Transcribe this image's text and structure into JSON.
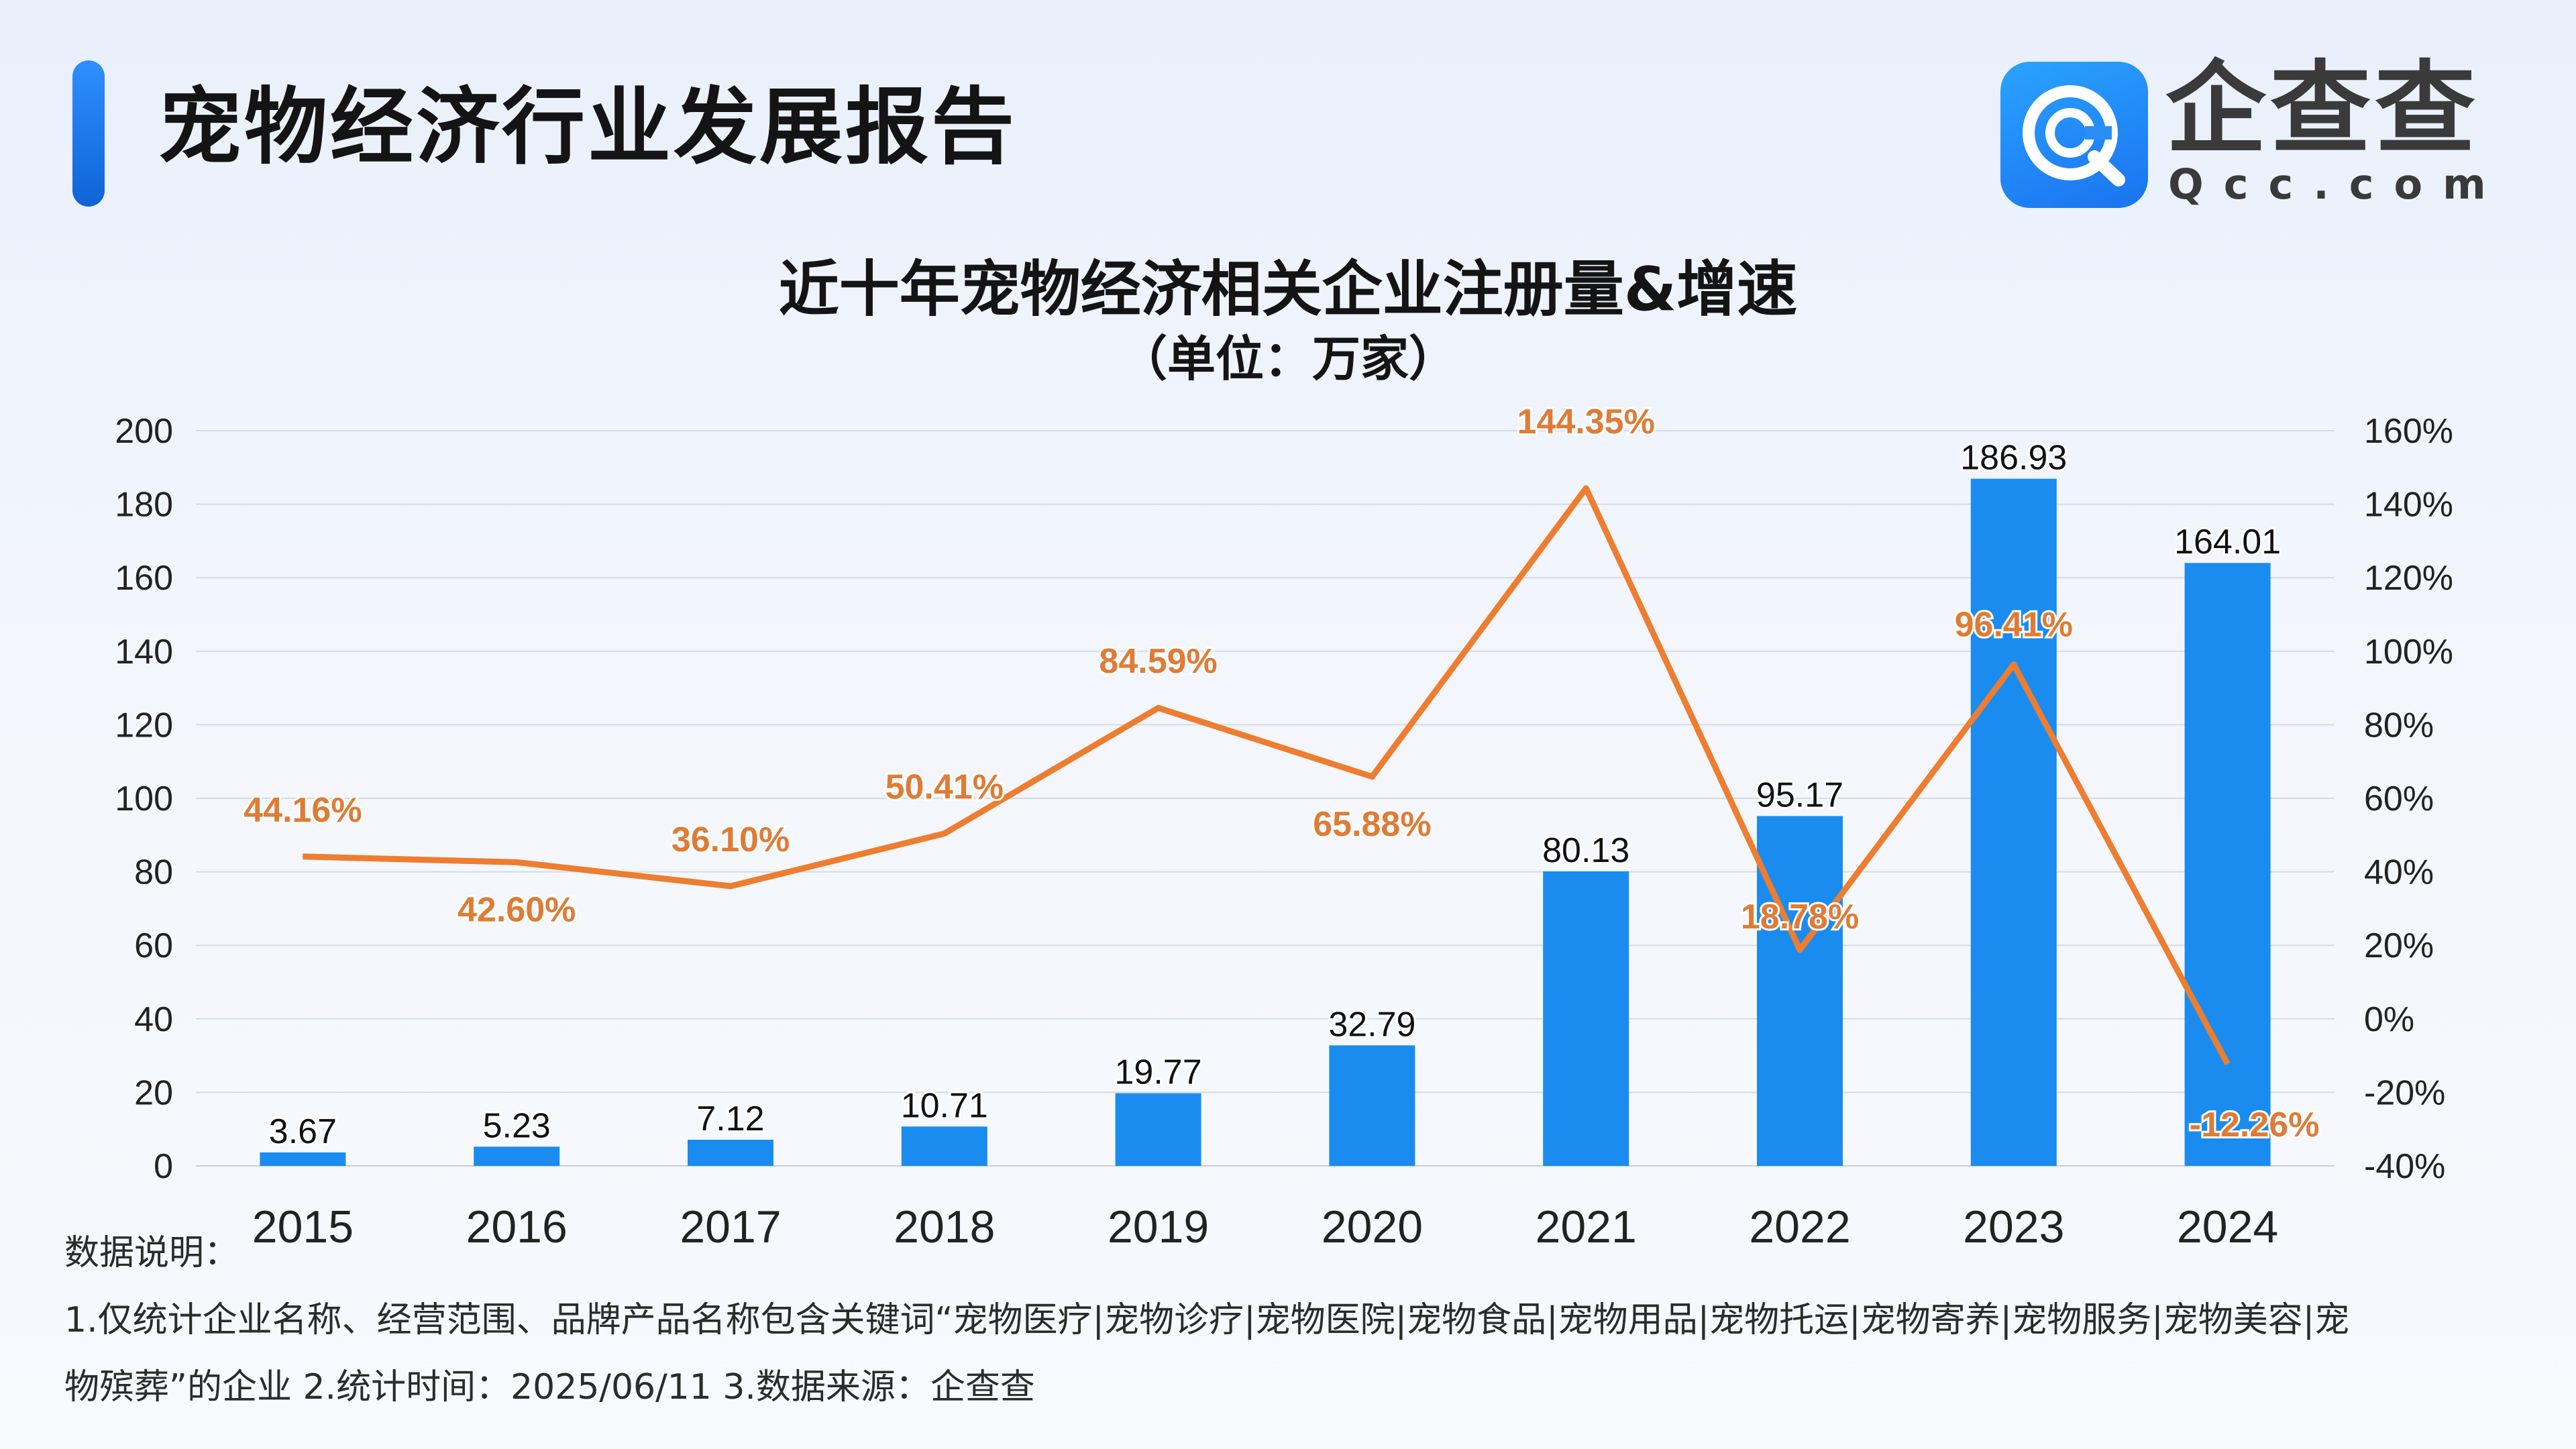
{
  "header": {
    "title": "宠物经济行业发展报告",
    "logo_cn": "企查查",
    "logo_en": "Qcc.com"
  },
  "colors": {
    "bar": "#1a8cf0",
    "line": "#ee7d2f",
    "line_label": "#e07b35",
    "grid": "#d6dbe3",
    "axis_text": "#222222"
  },
  "chart_data": {
    "type": "bar",
    "title": "近十年宠物经济相关企业注册量&增速",
    "subtitle": "（单位：万家）",
    "categories": [
      "2015",
      "2016",
      "2017",
      "2018",
      "2019",
      "2020",
      "2021",
      "2022",
      "2023",
      "2024"
    ],
    "series": [
      {
        "type": "bar",
        "values": [
          3.67,
          5.23,
          7.12,
          10.71,
          19.77,
          32.79,
          80.13,
          95.17,
          186.93,
          164.01
        ],
        "labels": [
          "3.67",
          "5.23",
          "7.12",
          "10.71",
          "19.77",
          "32.79",
          "80.13",
          "95.17",
          "186.93",
          "164.01"
        ],
        "axis": "left"
      },
      {
        "type": "line",
        "values": [
          44.16,
          42.6,
          36.1,
          50.41,
          84.59,
          65.88,
          144.35,
          18.78,
          96.41,
          -12.26
        ],
        "labels": [
          "44.16%",
          "42.60%",
          "36.10%",
          "50.41%",
          "84.59%",
          "65.88%",
          "144.35%",
          "18.78%",
          "96.41%",
          "-12.26%"
        ],
        "axis": "right"
      }
    ],
    "ylim": [
      0,
      200
    ],
    "y_ticks": [
      "0",
      "20",
      "40",
      "60",
      "80",
      "100",
      "120",
      "140",
      "160",
      "180",
      "200"
    ],
    "y2lim": [
      -40,
      160
    ],
    "y2_ticks": [
      "-40%",
      "-20%",
      "0%",
      "20%",
      "40%",
      "60%",
      "80%",
      "100%",
      "120%",
      "140%",
      "160%"
    ],
    "grid": true
  },
  "notes": {
    "heading": "数据说明：",
    "line1": "1.仅统计企业名称、经营范围、品牌产品名称包含关键词“宠物医疗|宠物诊疗|宠物医院|宠物食品|宠物用品|宠物托运|宠物寄养|宠物服务|宠物美容|宠",
    "line2": "物殡葬”的企业    2.统计时间：2025/06/11     3.数据来源：企查查"
  }
}
